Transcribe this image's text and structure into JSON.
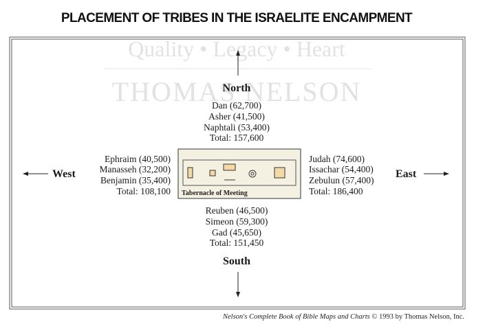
{
  "title": "PLACEMENT OF TRIBES IN THE ISRAELITE ENCAMPMENT",
  "watermark": {
    "line1": "Quality • Legacy • Heart",
    "line2": "THOMAS NELSON"
  },
  "directions": {
    "north": {
      "label": "North",
      "tribes": [
        "Dan (62,700)",
        "Asher (41,500)",
        "Naphtali (53,400)"
      ],
      "total": "Total: 157,600"
    },
    "west": {
      "label": "West",
      "tribes": [
        "Ephraim (40,500)",
        "Manasseh (32,200)",
        "Benjamin (35,400)"
      ],
      "total": "Total: 108,100"
    },
    "east": {
      "label": "East",
      "tribes": [
        "Judah (74,600)",
        "Issachar (54,400)",
        "Zebulun (57,400)"
      ],
      "total": "Total: 186,400"
    },
    "south": {
      "label": "South",
      "tribes": [
        "Reuben (46,500)",
        "Simeon (59,300)",
        "Gad (45,650)"
      ],
      "total": "Total: 151,450"
    }
  },
  "center": {
    "label": "Tabernacle of Meeting"
  },
  "credit": {
    "book": "Nelson's Complete Book of Bible Maps and Charts",
    "rest": "© 1993 by Thomas Nelson, Inc."
  }
}
